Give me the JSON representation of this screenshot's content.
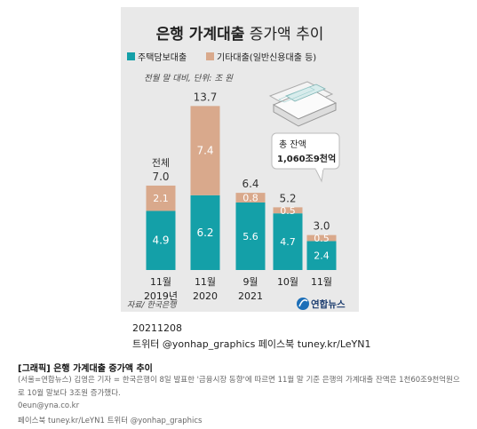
{
  "chart_data": {
    "type": "bar",
    "stacked": true,
    "title_bold": "은행 가계대출",
    "title_light": " 증가액 추이",
    "unit_note": "전월 말 대비, 단위: 조 원",
    "source": "자료/ 한국은행",
    "categories": [
      [
        "11월",
        "2019년"
      ],
      [
        "11월",
        "2020"
      ],
      [
        "9월",
        "2021"
      ],
      [
        "10월",
        ""
      ],
      [
        "11월",
        ""
      ]
    ],
    "series": [
      {
        "name": "주택담보대출",
        "color": "#14a0a8",
        "values": [
          4.9,
          6.2,
          5.6,
          4.7,
          2.4
        ],
        "labels": [
          "4.9",
          "6.2",
          "5.6",
          "4.7",
          "2.4"
        ]
      },
      {
        "name": "기타대출(일반신용대출 등)",
        "color": "#d9a98c",
        "values": [
          2.1,
          7.4,
          0.8,
          0.5,
          0.5
        ],
        "labels": [
          "2.1",
          "7.4",
          "0.8",
          "0.5",
          "0.5"
        ]
      }
    ],
    "totals": [
      "7.0",
      "13.7",
      "6.4",
      "5.2",
      "3.0"
    ],
    "total_label": "전체",
    "callout": {
      "line1": "총 잔액",
      "line2": "1,060조9천억"
    },
    "logo_text": "연합뉴스"
  },
  "colors": {
    "card": "#e9e9e9",
    "housing": "#14a0a8",
    "other": "#d9a98c",
    "text": "#333333"
  },
  "meta": {
    "date": "20211208",
    "social": "트위터 @yonhap_graphics  페이스북 tuney.kr/LeYN1"
  },
  "caption": {
    "title": "[그래픽] 은행 가계대출 증가액 추이",
    "body": "(서울=연합뉴스) 김영은 기자 = 한국은행이 8일 발표한 '금융시장 동향'에 따르면 11월 말 기준 은행의 가계대출 잔액은 1천60조9천억원으로 10월 말보다 3조원 증가했다.",
    "email": "0eun@yna.co.kr",
    "social": "페이스북 tuney.kr/LeYN1 트위터 @yonhap_graphics"
  }
}
